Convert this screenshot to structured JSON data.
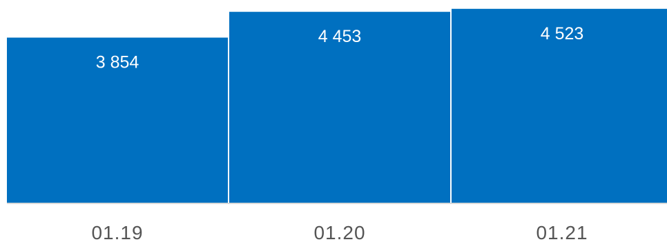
{
  "chart_data": {
    "type": "bar",
    "categories": [
      "01.19",
      "01.20",
      "01.21"
    ],
    "values": [
      3854,
      4453,
      4523
    ],
    "value_labels": [
      "3 854",
      "4 453",
      "4 523"
    ],
    "title": "",
    "xlabel": "",
    "ylabel": "",
    "ylim": [
      0,
      4600
    ],
    "grid": false,
    "legend": "none",
    "bar_color": "#0070C0",
    "axis_color": "#d9d9d9",
    "tick_label_color": "#555555"
  }
}
